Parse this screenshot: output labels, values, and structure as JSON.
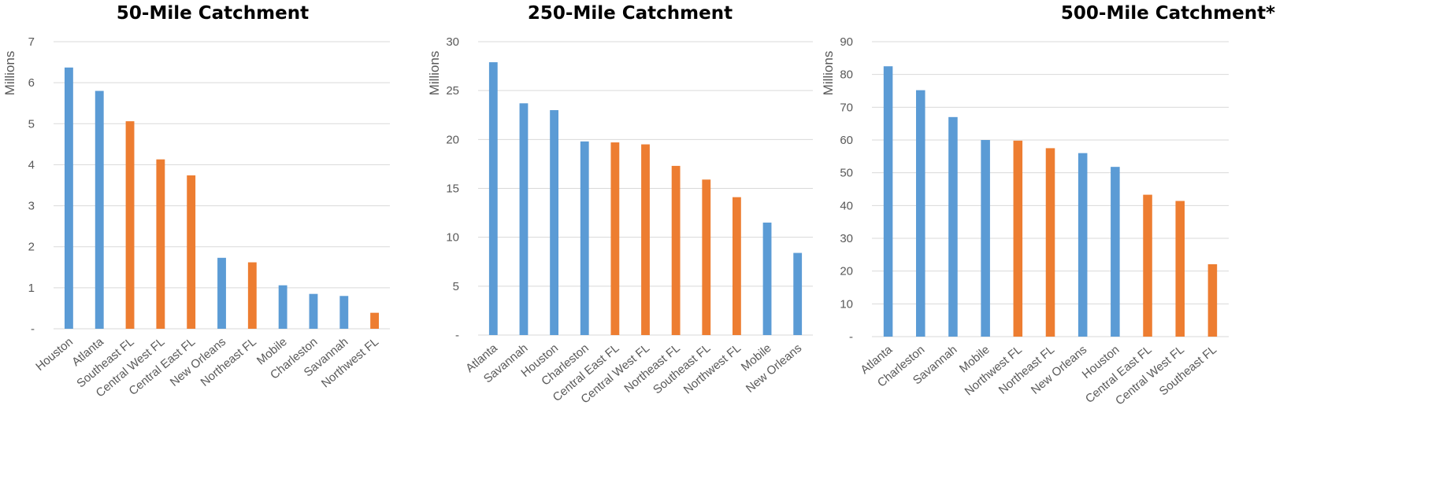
{
  "colors": {
    "existing": "#5B9BD5",
    "florida": "#ED7D31",
    "grid": "#D9D9D9",
    "text": "#595959"
  },
  "chart_data": [
    {
      "type": "bar",
      "title": "50-Mile Catchment",
      "ylabel": "Millions",
      "ylim": [
        0,
        7
      ],
      "yticks": [
        "-",
        "1",
        "2",
        "3",
        "4",
        "5",
        "6",
        "7"
      ],
      "grid": true,
      "categories": [
        "Houston",
        "Atlanta",
        "Southeast FL",
        "Central West FL",
        "Central East FL",
        "New Orleans",
        "Northeast FL",
        "Mobile",
        "Charleston",
        "Savannah",
        "Northwest FL"
      ],
      "values": [
        6.37,
        5.8,
        5.06,
        4.13,
        3.74,
        1.73,
        1.62,
        1.06,
        0.85,
        0.8,
        0.39
      ],
      "colors": [
        "#5B9BD5",
        "#5B9BD5",
        "#ED7D31",
        "#ED7D31",
        "#ED7D31",
        "#5B9BD5",
        "#ED7D31",
        "#5B9BD5",
        "#5B9BD5",
        "#5B9BD5",
        "#ED7D31"
      ]
    },
    {
      "type": "bar",
      "title": "250-Mile Catchment",
      "ylabel": "Millions",
      "ylim": [
        0,
        30
      ],
      "yticks": [
        "-",
        "5",
        "10",
        "15",
        "20",
        "25",
        "30"
      ],
      "grid": true,
      "categories": [
        "Atlanta",
        "Savannah",
        "Houston",
        "Charleston",
        "Central East FL",
        "Central West FL",
        "Northeast FL",
        "Southeast FL",
        "Northwest FL",
        "Mobile",
        "New Orleans"
      ],
      "values": [
        27.9,
        23.7,
        23.0,
        19.8,
        19.7,
        19.5,
        17.3,
        15.9,
        14.1,
        11.5,
        8.4
      ],
      "colors": [
        "#5B9BD5",
        "#5B9BD5",
        "#5B9BD5",
        "#5B9BD5",
        "#ED7D31",
        "#ED7D31",
        "#ED7D31",
        "#ED7D31",
        "#ED7D31",
        "#5B9BD5",
        "#5B9BD5"
      ]
    },
    {
      "type": "bar",
      "title": "500-Mile Catchment*",
      "ylabel": "Millions",
      "ylim": [
        0,
        90
      ],
      "yticks": [
        "-",
        "10",
        "20",
        "30",
        "40",
        "50",
        "60",
        "70",
        "80",
        "90"
      ],
      "grid": true,
      "categories": [
        "Atlanta",
        "Charleston",
        "Savannah",
        "Mobile",
        "Northwest FL",
        "Northeast FL",
        "New Orleans",
        "Houston",
        "Central East FL",
        "Central West FL",
        "Southeast FL"
      ],
      "values": [
        82.5,
        75.2,
        67.0,
        60.0,
        59.8,
        57.5,
        56.0,
        51.8,
        43.3,
        41.4,
        22.1
      ],
      "colors": [
        "#5B9BD5",
        "#5B9BD5",
        "#5B9BD5",
        "#5B9BD5",
        "#ED7D31",
        "#ED7D31",
        "#5B9BD5",
        "#5B9BD5",
        "#ED7D31",
        "#ED7D31",
        "#ED7D31"
      ]
    }
  ]
}
